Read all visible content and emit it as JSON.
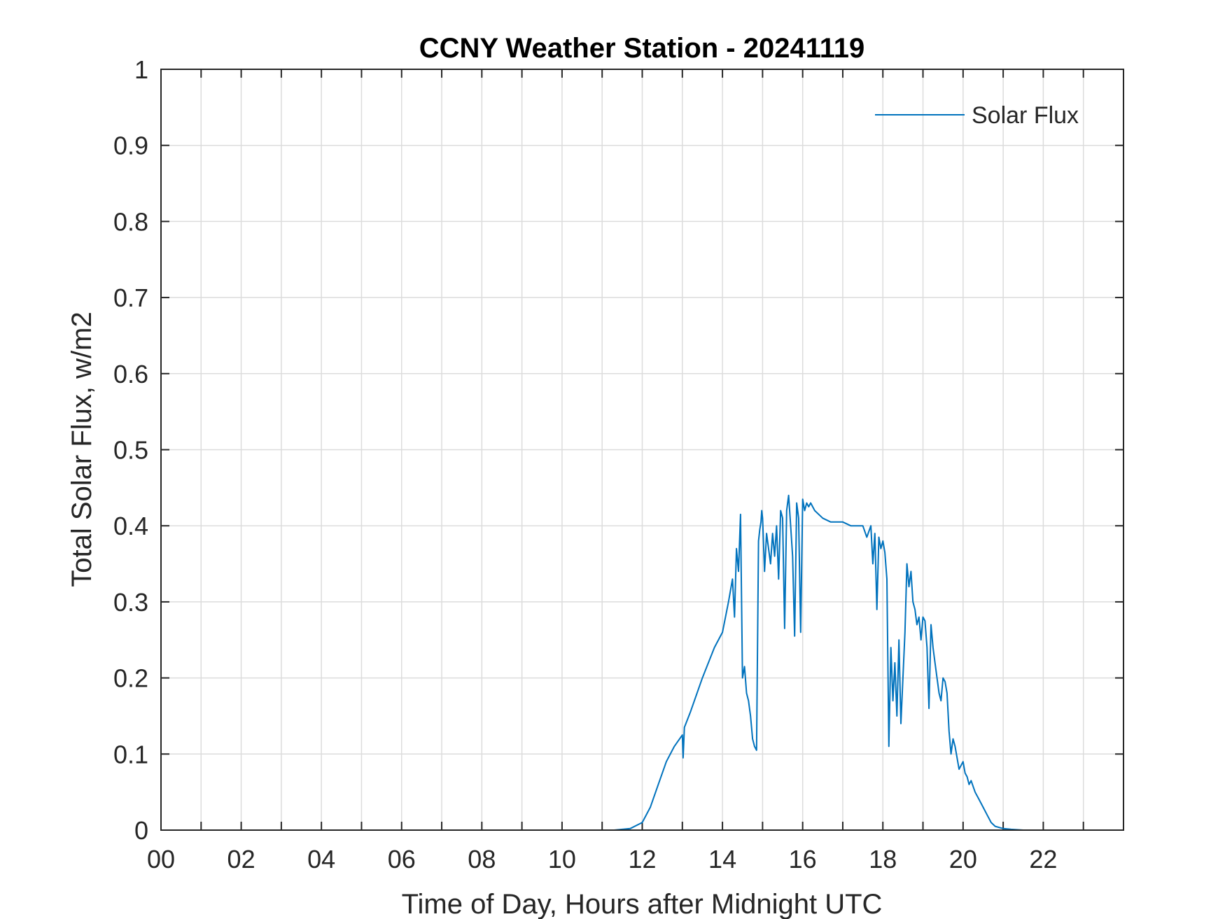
{
  "chart_data": {
    "type": "line",
    "title": "CCNY Weather Station - 20241119",
    "xlabel": "Time of Day, Hours after Midnight UTC",
    "ylabel": "Total Solar Flux, w/m2",
    "xlim": [
      0,
      24
    ],
    "ylim": [
      0,
      1
    ],
    "grid": true,
    "legend_position": "top-right",
    "x_ticks": [
      0,
      2,
      4,
      6,
      8,
      10,
      12,
      14,
      16,
      18,
      20,
      22
    ],
    "x_tick_labels": [
      "00",
      "02",
      "04",
      "06",
      "08",
      "10",
      "12",
      "14",
      "16",
      "18",
      "20",
      "22"
    ],
    "y_ticks": [
      0,
      0.1,
      0.2,
      0.3,
      0.4,
      0.5,
      0.6,
      0.7,
      0.8,
      0.9,
      1
    ],
    "y_tick_labels": [
      "0",
      "0.1",
      "0.2",
      "0.3",
      "0.4",
      "0.5",
      "0.6",
      "0.7",
      "0.8",
      "0.9",
      "1"
    ],
    "colors": {
      "series": "#0072BD",
      "grid": "#dcdcdc",
      "axis": "#262626"
    },
    "series": [
      {
        "name": "Solar Flux",
        "x": [
          0,
          11.3,
          11.7,
          12.0,
          12.2,
          12.4,
          12.6,
          12.8,
          13.0,
          13.02,
          13.05,
          13.2,
          13.5,
          13.8,
          14.0,
          14.15,
          14.25,
          14.3,
          14.35,
          14.4,
          14.45,
          14.5,
          14.55,
          14.6,
          14.65,
          14.7,
          14.75,
          14.8,
          14.85,
          14.9,
          14.93,
          14.96,
          14.98,
          15.0,
          15.05,
          15.1,
          15.2,
          15.25,
          15.3,
          15.35,
          15.4,
          15.45,
          15.5,
          15.55,
          15.6,
          15.65,
          15.7,
          15.75,
          15.8,
          15.85,
          15.9,
          15.95,
          16.0,
          16.05,
          16.1,
          16.15,
          16.2,
          16.3,
          16.5,
          16.7,
          17.0,
          17.2,
          17.5,
          17.6,
          17.7,
          17.75,
          17.8,
          17.85,
          17.9,
          17.95,
          18.0,
          18.05,
          18.1,
          18.15,
          18.2,
          18.25,
          18.3,
          18.35,
          18.4,
          18.45,
          18.5,
          18.55,
          18.6,
          18.65,
          18.7,
          18.75,
          18.8,
          18.85,
          18.9,
          18.95,
          19.0,
          19.05,
          19.1,
          19.15,
          19.2,
          19.25,
          19.3,
          19.35,
          19.4,
          19.45,
          19.5,
          19.55,
          19.6,
          19.65,
          19.7,
          19.75,
          19.8,
          19.9,
          20.0,
          20.05,
          20.1,
          20.15,
          20.2,
          20.3,
          20.4,
          20.5,
          20.6,
          20.7,
          20.8,
          21.0,
          21.2,
          21.5,
          21.7,
          21.9,
          22.0,
          24.0
        ],
        "values": [
          0,
          0,
          0.002,
          0.01,
          0.03,
          0.06,
          0.09,
          0.11,
          0.125,
          0.095,
          0.135,
          0.155,
          0.2,
          0.24,
          0.26,
          0.3,
          0.33,
          0.28,
          0.37,
          0.34,
          0.415,
          0.2,
          0.215,
          0.18,
          0.17,
          0.15,
          0.12,
          0.11,
          0.105,
          0.38,
          0.395,
          0.405,
          0.42,
          0.41,
          0.34,
          0.39,
          0.35,
          0.39,
          0.36,
          0.4,
          0.33,
          0.42,
          0.41,
          0.265,
          0.42,
          0.44,
          0.4,
          0.36,
          0.255,
          0.43,
          0.41,
          0.26,
          0.435,
          0.42,
          0.43,
          0.425,
          0.43,
          0.42,
          0.41,
          0.405,
          0.405,
          0.4,
          0.4,
          0.385,
          0.4,
          0.35,
          0.39,
          0.29,
          0.385,
          0.37,
          0.38,
          0.365,
          0.33,
          0.11,
          0.24,
          0.17,
          0.22,
          0.15,
          0.25,
          0.14,
          0.2,
          0.26,
          0.35,
          0.32,
          0.34,
          0.3,
          0.29,
          0.27,
          0.28,
          0.25,
          0.28,
          0.275,
          0.24,
          0.16,
          0.27,
          0.24,
          0.22,
          0.2,
          0.18,
          0.17,
          0.2,
          0.195,
          0.18,
          0.13,
          0.1,
          0.12,
          0.11,
          0.08,
          0.09,
          0.075,
          0.07,
          0.06,
          0.065,
          0.05,
          0.04,
          0.03,
          0.02,
          0.01,
          0.005,
          0.002,
          0.001,
          0,
          0,
          0,
          0,
          0
        ]
      }
    ]
  }
}
